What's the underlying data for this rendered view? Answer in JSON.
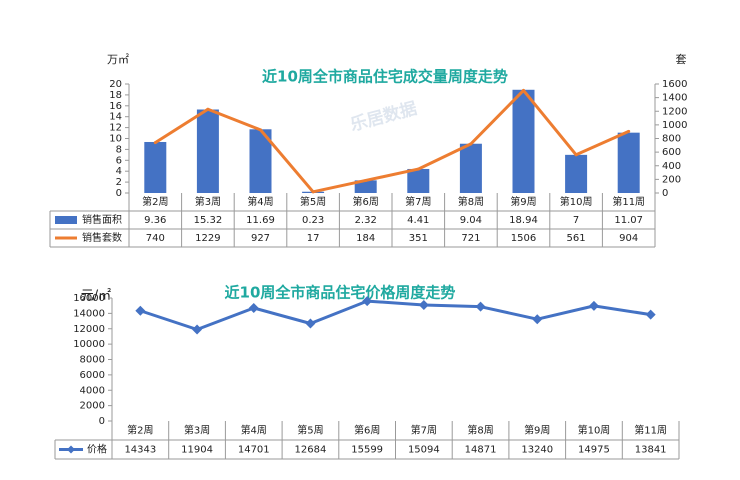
{
  "chart_data": [
    {
      "type": "bar",
      "title": "近10周全市商品住宅成交量周度走势",
      "ylabel": "万㎡",
      "y2label": "套",
      "ylim": [
        0,
        20
      ],
      "y2lim": [
        0,
        1600
      ],
      "yticks": [
        "0",
        "2",
        "4",
        "6",
        "8",
        "10",
        "12",
        "14",
        "16",
        "18",
        "20"
      ],
      "y2ticks": [
        "0",
        "200",
        "400",
        "600",
        "800",
        "1000",
        "1200",
        "1400",
        "1600"
      ],
      "categories": [
        "第2周",
        "第3周",
        "第4周",
        "第5周",
        "第6周",
        "第7周",
        "第8周",
        "第9周",
        "第10周",
        "第11周"
      ],
      "series": [
        {
          "name": "销售面积",
          "type": "bar",
          "axis": "left",
          "color": "#4472c4",
          "values": [
            9.36,
            15.32,
            11.69,
            0.23,
            2.32,
            4.41,
            9.04,
            18.94,
            7,
            11.07
          ],
          "labels": [
            "9.36",
            "15.32",
            "11.69",
            "0.23",
            "2.32",
            "4.41",
            "9.04",
            "18.94",
            "7",
            "11.07"
          ]
        },
        {
          "name": "销售套数",
          "type": "line",
          "axis": "right",
          "color": "#ed7d31",
          "values": [
            740,
            1229,
            927,
            17,
            184,
            351,
            721,
            1506,
            561,
            904
          ],
          "labels": [
            "740",
            "1229",
            "927",
            "17",
            "184",
            "351",
            "721",
            "1506",
            "561",
            "904"
          ]
        }
      ],
      "legend": "data-table",
      "grid": false
    },
    {
      "type": "line",
      "title": "近10周全市商品住宅价格周度走势",
      "ylabel": "元/㎡",
      "ylim": [
        0,
        16000
      ],
      "yticks": [
        "0",
        "2000",
        "4000",
        "6000",
        "8000",
        "10000",
        "12000",
        "14000",
        "16000"
      ],
      "categories": [
        "第2周",
        "第3周",
        "第4周",
        "第5周",
        "第6周",
        "第7周",
        "第8周",
        "第9周",
        "第10周",
        "第11周"
      ],
      "series": [
        {
          "name": "价格",
          "color": "#4472c4",
          "values": [
            14343,
            11904,
            14701,
            12684,
            15599,
            15094,
            14871,
            13240,
            14975,
            13841
          ],
          "labels": [
            "14343",
            "11904",
            "14701",
            "12684",
            "15599",
            "15094",
            "14871",
            "13240",
            "14975",
            "13841"
          ]
        }
      ],
      "legend": "data-table",
      "grid": false
    }
  ]
}
